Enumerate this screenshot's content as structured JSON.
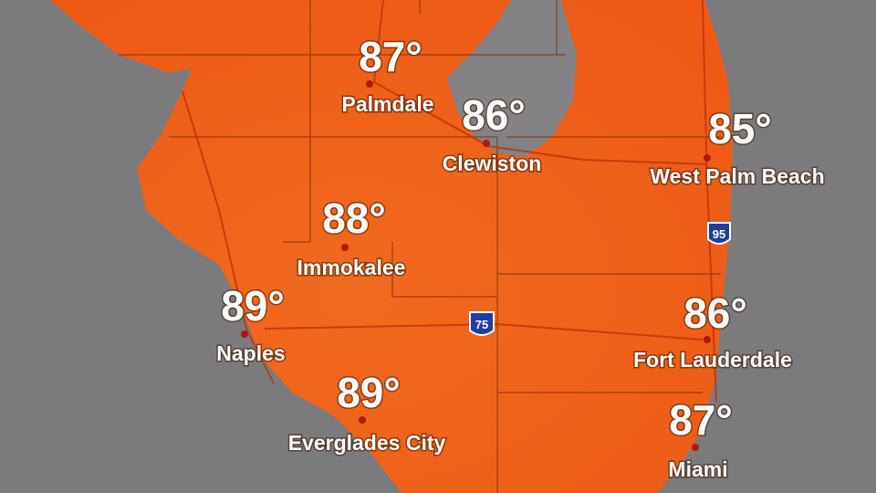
{
  "cities": [
    {
      "name": "Palmdale",
      "temp": "87°"
    },
    {
      "name": "Clewiston",
      "temp": "86°"
    },
    {
      "name": "West Palm Beach",
      "temp": "85°"
    },
    {
      "name": "Immokalee",
      "temp": "88°"
    },
    {
      "name": "Naples",
      "temp": "89°"
    },
    {
      "name": "Fort Lauderdale",
      "temp": "86°"
    },
    {
      "name": "Everglades City",
      "temp": "89°"
    },
    {
      "name": "Miami",
      "temp": "87°"
    }
  ],
  "highways": [
    "75",
    "95"
  ]
}
